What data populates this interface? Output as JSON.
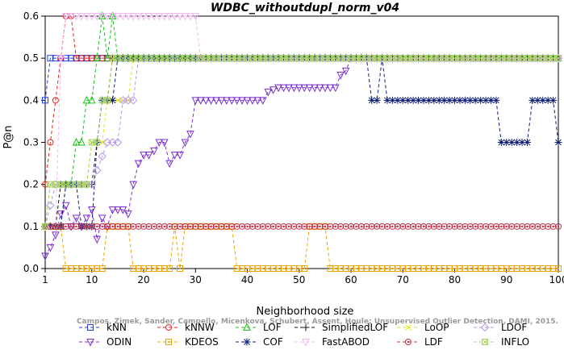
{
  "chart_data": {
    "type": "line",
    "title": "WDBC_withoutdupl_norm_v04",
    "xlabel": "Neighborhood size",
    "ylabel": "P@n",
    "xlim": [
      1,
      100
    ],
    "ylim": [
      0,
      0.6
    ],
    "xticks": [
      1,
      10,
      20,
      30,
      40,
      50,
      60,
      70,
      80,
      90,
      100
    ],
    "yticks": [
      0.0,
      0.1,
      0.2,
      0.3,
      0.4,
      0.5,
      0.6
    ],
    "grid": false,
    "legend_position": "bottom",
    "credit": "Campos, Zimek, Sander, Campello, Micenkova, Schubert, Assent, Houle: Unsupervised Outlier Detection, DAMI, 2015.",
    "series": [
      {
        "name": "kNN",
        "color": "#1e3ff0",
        "marker": "square",
        "dash": "4,3",
        "segments": [
          [
            1,
            0.4
          ],
          [
            2,
            0.5
          ],
          [
            100,
            0.5
          ]
        ]
      },
      {
        "name": "kNNW",
        "color": "#e8231c",
        "marker": "circle",
        "dash": "4,3",
        "segments": [
          [
            1,
            0.2
          ],
          [
            2,
            0.3
          ],
          [
            3,
            0.4
          ],
          [
            4,
            0.5
          ],
          [
            5,
            0.6
          ],
          [
            6,
            0.6
          ],
          [
            7,
            0.5
          ],
          [
            100,
            0.5
          ]
        ]
      },
      {
        "name": "LOF",
        "color": "#19c419",
        "marker": "triangle-up",
        "dash": "4,3",
        "segments": [
          [
            1,
            0.1
          ],
          [
            4,
            0.1
          ],
          [
            5,
            0.2
          ],
          [
            6,
            0.2
          ],
          [
            7,
            0.3
          ],
          [
            8,
            0.3
          ],
          [
            9,
            0.4
          ],
          [
            10,
            0.4
          ],
          [
            11,
            0.5
          ],
          [
            12,
            0.6
          ],
          [
            13,
            0.5
          ],
          [
            14,
            0.6
          ],
          [
            15,
            0.5
          ],
          [
            100,
            0.5
          ]
        ]
      },
      {
        "name": "SimplifiedLOF",
        "color": "#111111",
        "marker": "plus",
        "dash": "4,3",
        "segments": [
          [
            1,
            0.1
          ],
          [
            3,
            0.1
          ],
          [
            4,
            0.2
          ],
          [
            10,
            0.2
          ],
          [
            11,
            0.3
          ],
          [
            12,
            0.4
          ],
          [
            13,
            0.4
          ],
          [
            14,
            0.5
          ],
          [
            100,
            0.5
          ]
        ]
      },
      {
        "name": "LoOP",
        "color": "#e6e61a",
        "marker": "x",
        "dash": "4,3",
        "segments": [
          [
            1,
            0.1
          ],
          [
            2,
            0.2
          ],
          [
            9,
            0.2
          ],
          [
            10,
            0.3
          ],
          [
            12,
            0.3
          ],
          [
            13,
            0.4
          ],
          [
            17,
            0.4
          ],
          [
            18,
            0.5
          ],
          [
            100,
            0.5
          ]
        ]
      },
      {
        "name": "LDOF",
        "color": "#b39ae8",
        "marker": "diamond",
        "dash": "4,3",
        "segments": [
          [
            1,
            0.1
          ],
          [
            3,
            0.2
          ],
          [
            10,
            0.2
          ],
          [
            13,
            0.3
          ],
          [
            15,
            0.3
          ],
          [
            16,
            0.4
          ],
          [
            18,
            0.4
          ],
          [
            19,
            0.5
          ],
          [
            100,
            0.5
          ]
        ]
      },
      {
        "name": "ODIN",
        "color": "#7b2fd0",
        "marker": "triangle-down",
        "dash": "4,3",
        "segments": [
          [
            1,
            0.03
          ],
          [
            2,
            0.05
          ],
          [
            3,
            0.08
          ],
          [
            4,
            0.13
          ],
          [
            5,
            0.15
          ],
          [
            6,
            0.1
          ],
          [
            7,
            0.12
          ],
          [
            8,
            0.1
          ],
          [
            9,
            0.12
          ],
          [
            10,
            0.14
          ],
          [
            11,
            0.07
          ],
          [
            12,
            0.12
          ],
          [
            13,
            0.1
          ],
          [
            14,
            0.14
          ],
          [
            15,
            0.14
          ],
          [
            16,
            0.14
          ],
          [
            17,
            0.13
          ],
          [
            18,
            0.2
          ],
          [
            19,
            0.25
          ],
          [
            20,
            0.27
          ],
          [
            21,
            0.27
          ],
          [
            22,
            0.28
          ],
          [
            23,
            0.3
          ],
          [
            24,
            0.3
          ],
          [
            25,
            0.25
          ],
          [
            26,
            0.27
          ],
          [
            27,
            0.27
          ],
          [
            28,
            0.3
          ],
          [
            29,
            0.32
          ],
          [
            30,
            0.4
          ],
          [
            43,
            0.4
          ],
          [
            44,
            0.42
          ],
          [
            46,
            0.43
          ],
          [
            57,
            0.43
          ],
          [
            58,
            0.46
          ],
          [
            59,
            0.47
          ],
          [
            60,
            0.5
          ],
          [
            100,
            0.5
          ]
        ]
      },
      {
        "name": "KDEOS",
        "color": "#f0a500",
        "marker": "square-dot",
        "dash": "4,3",
        "segments": [
          [
            1,
            0.1
          ],
          [
            4,
            0.1
          ],
          [
            5,
            0.0
          ],
          [
            12,
            0.0
          ],
          [
            13,
            0.1
          ],
          [
            17,
            0.1
          ],
          [
            18,
            0.0
          ],
          [
            25,
            0.0
          ],
          [
            26,
            0.1
          ],
          [
            27,
            0.0
          ],
          [
            28,
            0.1
          ],
          [
            37,
            0.1
          ],
          [
            38,
            0.0
          ],
          [
            51,
            0.0
          ],
          [
            52,
            0.1
          ],
          [
            55,
            0.1
          ],
          [
            56,
            0.0
          ],
          [
            100,
            0.0
          ]
        ]
      },
      {
        "name": "COF",
        "color": "#0d1e78",
        "marker": "asterisk",
        "dash": "4,3",
        "segments": [
          [
            1,
            0.1
          ],
          [
            4,
            0.1
          ],
          [
            5,
            0.2
          ],
          [
            7,
            0.2
          ],
          [
            8,
            0.1
          ],
          [
            9,
            0.1
          ],
          [
            10,
            0.1
          ],
          [
            11,
            0.3
          ],
          [
            12,
            0.4
          ],
          [
            14,
            0.4
          ],
          [
            15,
            0.5
          ],
          [
            63,
            0.5
          ],
          [
            64,
            0.4
          ],
          [
            65,
            0.4
          ],
          [
            66,
            0.5
          ],
          [
            67,
            0.4
          ],
          [
            88,
            0.4
          ],
          [
            89,
            0.3
          ],
          [
            94,
            0.3
          ],
          [
            95,
            0.4
          ],
          [
            99,
            0.4
          ],
          [
            100,
            0.3
          ]
        ]
      },
      {
        "name": "FastABOD",
        "color": "#f5b8f5",
        "marker": "triangle-down",
        "dash": "4,3",
        "segments": [
          [
            1,
            0.1
          ],
          [
            3,
            0.1
          ],
          [
            4,
            0.5
          ],
          [
            5,
            0.6
          ],
          [
            30,
            0.6
          ],
          [
            31,
            0.5
          ],
          [
            100,
            0.5
          ]
        ]
      },
      {
        "name": "LDF",
        "color": "#c0304a",
        "marker": "circle-dot",
        "dash": "4,3",
        "segments": [
          [
            1,
            0.1
          ],
          [
            100,
            0.1
          ]
        ]
      },
      {
        "name": "INFLO",
        "color": "#a8d660",
        "marker": "square-x",
        "dash": "4,3",
        "segments": [
          [
            1,
            0.1
          ],
          [
            2,
            0.2
          ],
          [
            9,
            0.2
          ],
          [
            10,
            0.3
          ],
          [
            11,
            0.3
          ],
          [
            12,
            0.4
          ],
          [
            13,
            0.4
          ],
          [
            14,
            0.5
          ],
          [
            100,
            0.5
          ]
        ]
      }
    ],
    "legend": [
      {
        "name": "kNN",
        "series": 0
      },
      {
        "name": "kNNW",
        "series": 1
      },
      {
        "name": "LOF",
        "series": 2
      },
      {
        "name": "SimplifiedLOF",
        "series": 3
      },
      {
        "name": "LoOP",
        "series": 4
      },
      {
        "name": "LDOF",
        "series": 5
      },
      {
        "name": "ODIN",
        "series": 6
      },
      {
        "name": "KDEOS",
        "series": 7
      },
      {
        "name": "COF",
        "series": 8
      },
      {
        "name": "FastABOD",
        "series": 9
      },
      {
        "name": "LDF",
        "series": 10
      },
      {
        "name": "INFLO",
        "series": 11
      }
    ]
  }
}
